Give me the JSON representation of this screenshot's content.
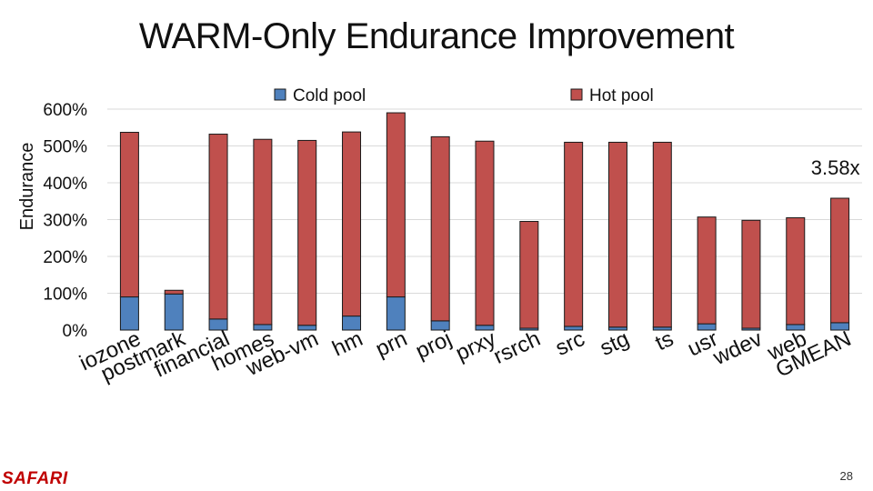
{
  "slide": {
    "title": "WARM-Only Endurance Improvement",
    "brand": "SAFARI",
    "page_number": "28"
  },
  "colors": {
    "cold": "#4f81bd",
    "hot": "#c0504d",
    "stroke": "#1a1a1a",
    "grid": "#d9d9d9",
    "text": "#111111"
  },
  "chart_data": {
    "type": "bar",
    "stacked": true,
    "title": "WARM-Only Endurance Improvement",
    "xlabel": "",
    "ylabel": "Endurance",
    "ylim": [
      0,
      600
    ],
    "yticks": [
      0,
      100,
      200,
      300,
      400,
      500,
      600
    ],
    "ytick_labels": [
      "0%",
      "100%",
      "200%",
      "300%",
      "400%",
      "500%",
      "600%"
    ],
    "grid": true,
    "legend": [
      "Cold pool",
      "Hot pool"
    ],
    "categories": [
      "iozone",
      "postmark",
      "financial",
      "homes",
      "web-vm",
      "hm",
      "prn",
      "proj",
      "prxy",
      "rsrch",
      "src",
      "stg",
      "ts",
      "usr",
      "wdev",
      "web",
      "GMEAN"
    ],
    "series": [
      {
        "name": "Cold pool",
        "values": [
          90,
          98,
          30,
          15,
          13,
          38,
          90,
          25,
          13,
          5,
          10,
          8,
          8,
          17,
          5,
          15,
          20
        ]
      },
      {
        "name": "Hot pool",
        "values": [
          447,
          10,
          502,
          503,
          502,
          500,
          500,
          500,
          500,
          290,
          500,
          502,
          502,
          290,
          293,
          290,
          338
        ]
      }
    ],
    "annotations": [
      {
        "category": "GMEAN",
        "text": "3.58x"
      }
    ]
  }
}
